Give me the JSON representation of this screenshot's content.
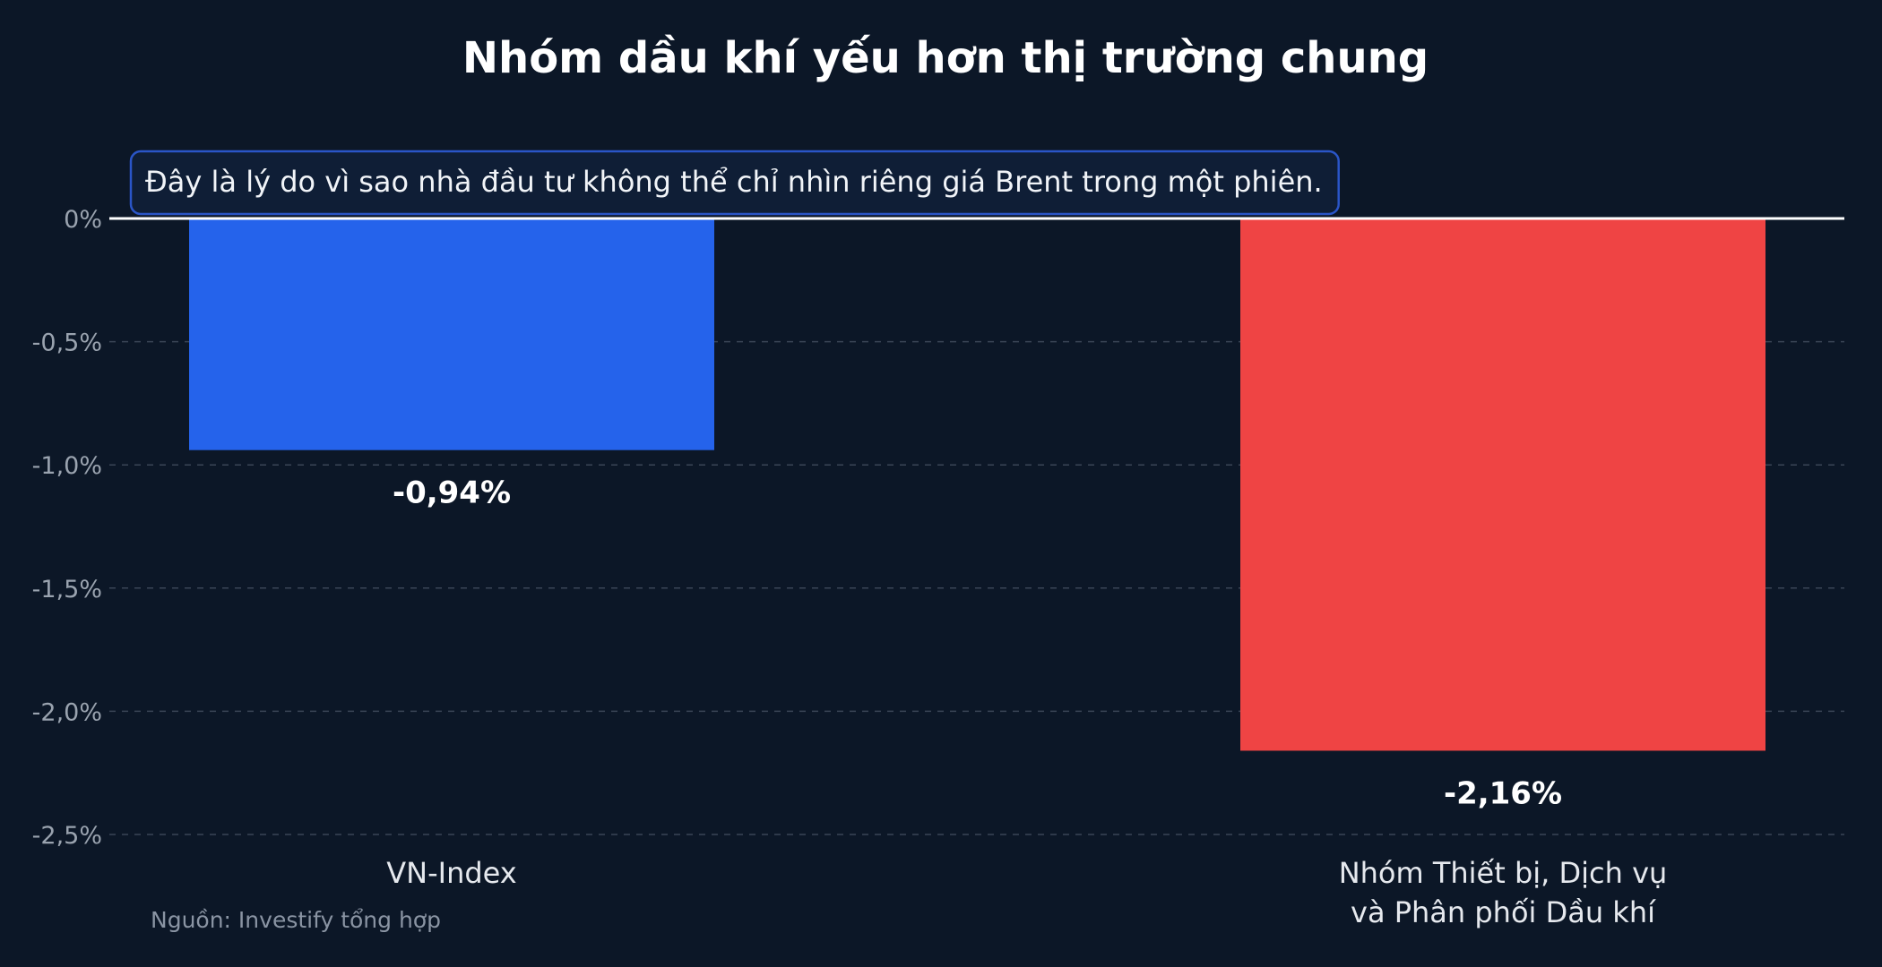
{
  "chart_data": {
    "type": "bar",
    "title": "Nhóm dầu khí yếu hơn thị trường chung",
    "categories": [
      "VN-Index",
      "Nhóm Thiết bị, Dịch vụ\nvà Phân phối Dầu khí"
    ],
    "values": [
      -0.94,
      -2.16
    ],
    "value_labels": [
      "-0,94%",
      "-2,16%"
    ],
    "bar_colors": [
      "#2563eb",
      "#ef4444"
    ],
    "ylim": [
      -2.5,
      0
    ],
    "yticks": [
      0,
      -0.5,
      -1.0,
      -1.5,
      -2.0,
      -2.5
    ],
    "ytick_labels": [
      "0%",
      "-0,5%",
      "-1,0%",
      "-1,5%",
      "-2,0%",
      "-2,5%"
    ],
    "xlabel": "",
    "ylabel": "",
    "grid": true,
    "annotation": "Đây là lý do vì sao nhà đầu tư không thể chỉ nhìn riêng giá Brent trong một phiên.",
    "source": "Nguồn: Investify tổng hợp"
  },
  "colors": {
    "background": "#0c1727",
    "zero_line": "#ffffff",
    "grid": "#3a4556",
    "annotation_border": "#2a55c7",
    "annotation_fill": "#0f1e36"
  }
}
